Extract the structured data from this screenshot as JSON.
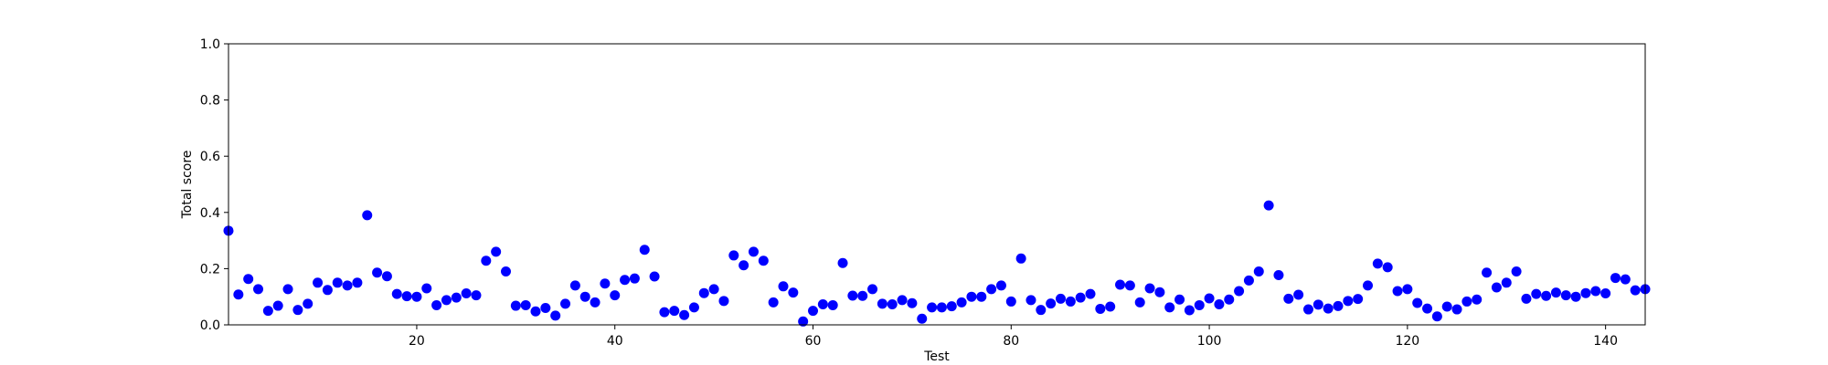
{
  "chart_data": {
    "type": "scatter",
    "xlabel": "Test",
    "ylabel": "Total score",
    "xlim": [
      1,
      144
    ],
    "ylim": [
      0,
      1
    ],
    "x_ticks": [
      20,
      40,
      60,
      80,
      100,
      120,
      140
    ],
    "y_ticks": [
      "0.0",
      "0.2",
      "0.4",
      "0.6",
      "0.8",
      "1.0"
    ],
    "grid": false,
    "legend": "none",
    "point_color": "#0000ff",
    "series": [
      {
        "x": [
          1,
          2,
          3,
          4,
          5,
          6,
          7,
          8,
          9,
          10,
          11,
          12,
          13,
          14,
          15,
          16,
          17,
          18,
          19,
          20,
          21,
          22,
          23,
          24,
          25,
          26,
          27,
          28,
          29,
          30,
          31,
          32,
          33,
          34,
          35,
          36,
          37,
          38,
          39,
          40,
          41,
          42,
          43,
          44,
          45,
          46,
          47,
          48,
          49,
          50,
          51,
          52,
          53,
          54,
          55,
          56,
          57,
          58,
          59,
          60,
          61,
          62,
          63,
          64,
          65,
          66,
          67,
          68,
          69,
          70,
          71,
          72,
          73,
          74,
          75,
          76,
          77,
          78,
          79,
          80,
          81,
          82,
          83,
          84,
          85,
          86,
          87,
          88,
          89,
          90,
          91,
          92,
          93,
          94,
          95,
          96,
          97,
          98,
          99,
          100,
          101,
          102,
          103,
          104,
          105,
          106,
          107,
          108,
          109,
          110,
          111,
          112,
          113,
          114,
          115,
          116,
          117,
          118,
          119,
          120,
          121,
          122,
          123,
          124,
          125,
          126,
          127,
          128,
          129,
          130,
          131,
          132,
          133,
          134,
          135,
          136,
          137,
          138,
          139,
          140,
          141,
          142,
          143,
          144
        ],
        "y": [
          0.335,
          0.108,
          0.163,
          0.127,
          0.05,
          0.068,
          0.127,
          0.053,
          0.075,
          0.15,
          0.124,
          0.15,
          0.14,
          0.15,
          0.39,
          0.186,
          0.173,
          0.11,
          0.102,
          0.1,
          0.13,
          0.07,
          0.088,
          0.097,
          0.112,
          0.105,
          0.228,
          0.26,
          0.19,
          0.068,
          0.07,
          0.048,
          0.06,
          0.033,
          0.075,
          0.14,
          0.1,
          0.08,
          0.147,
          0.105,
          0.16,
          0.165,
          0.267,
          0.172,
          0.045,
          0.05,
          0.035,
          0.062,
          0.113,
          0.127,
          0.085,
          0.247,
          0.212,
          0.26,
          0.228,
          0.08,
          0.137,
          0.115,
          0.012,
          0.05,
          0.073,
          0.07,
          0.22,
          0.104,
          0.103,
          0.127,
          0.075,
          0.073,
          0.088,
          0.077,
          0.022,
          0.062,
          0.062,
          0.066,
          0.08,
          0.1,
          0.1,
          0.127,
          0.14,
          0.083,
          0.236,
          0.088,
          0.053,
          0.076,
          0.093,
          0.083,
          0.097,
          0.11,
          0.057,
          0.065,
          0.143,
          0.14,
          0.08,
          0.13,
          0.116,
          0.062,
          0.09,
          0.052,
          0.07,
          0.094,
          0.073,
          0.09,
          0.12,
          0.158,
          0.19,
          0.425,
          0.177,
          0.093,
          0.107,
          0.055,
          0.072,
          0.058,
          0.067,
          0.085,
          0.092,
          0.14,
          0.218,
          0.205,
          0.12,
          0.127,
          0.078,
          0.058,
          0.03,
          0.065,
          0.055,
          0.083,
          0.09,
          0.186,
          0.133,
          0.15,
          0.19,
          0.093,
          0.11,
          0.103,
          0.115,
          0.105,
          0.1,
          0.113,
          0.12,
          0.112,
          0.167,
          0.162,
          0.123,
          0.127
        ]
      }
    ]
  }
}
